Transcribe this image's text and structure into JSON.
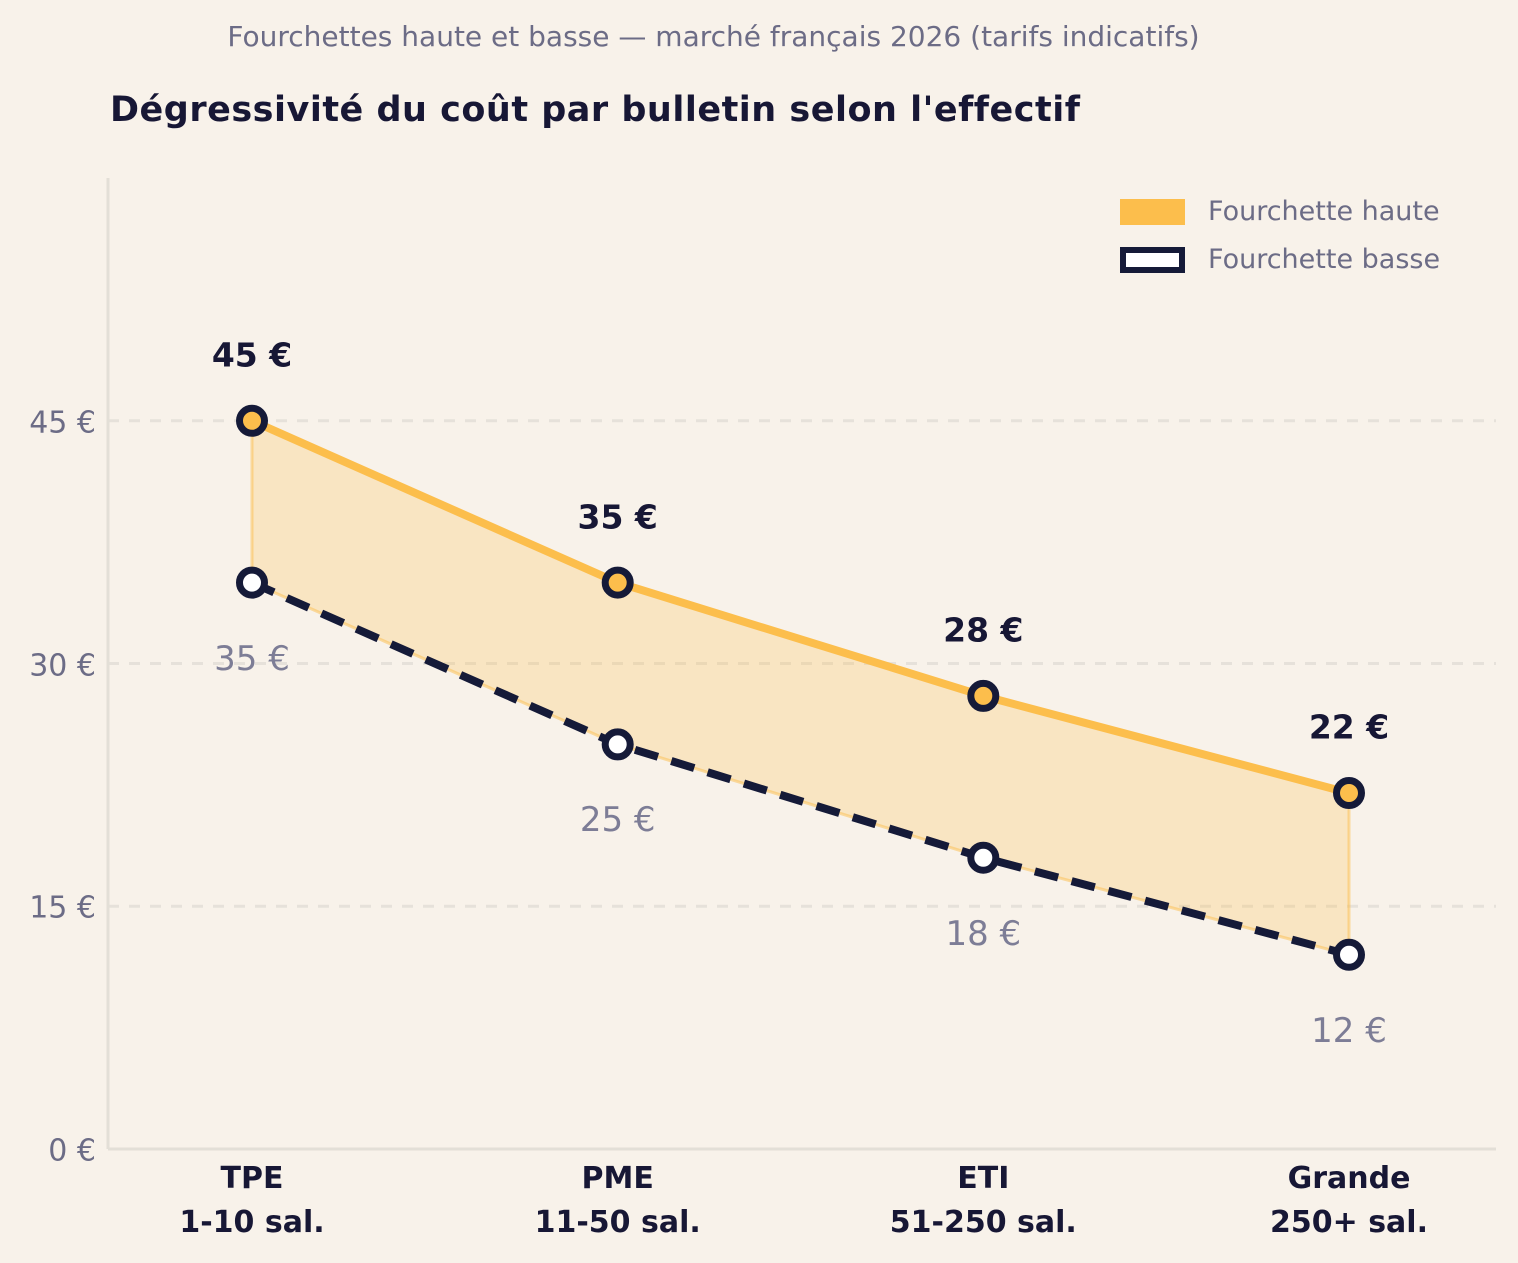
{
  "header": {
    "subtitle": "Fourchettes haute et basse — marché français 2026 (tarifs indicatifs)",
    "title": "Dégressivité du coût par bulletin selon l'effectif"
  },
  "legend": {
    "position": "top-right",
    "items": [
      {
        "label": "Fourchette haute",
        "swatch": "orange-filled-rect"
      },
      {
        "label": "Fourchette basse",
        "swatch": "white-rect-navy-border"
      }
    ]
  },
  "colors": {
    "background": "#F8F2EA",
    "accent_orange": "#FCBE4C",
    "navy": "#151A38",
    "title_navy": "#171735",
    "muted_text": "#6C6C86",
    "low_label_gray": "#7D7D96",
    "band_fill": "rgba(251,190,76,0.25)",
    "band_edge": "rgba(251,190,76,0.5)",
    "gridline": "#E6E1DA",
    "spine": "#E3DFD7",
    "marker_low_fill": "#FFFFFF"
  },
  "chart_data": {
    "type": "line",
    "title": "Dégressivité du coût par bulletin selon l'effectif",
    "subtitle": "Fourchettes haute et basse — marché français 2026 (tarifs indicatifs)",
    "unit": "€",
    "categories": [
      {
        "name": "TPE",
        "sub": "1-10 sal."
      },
      {
        "name": "PME",
        "sub": "11-50 sal."
      },
      {
        "name": "ETI",
        "sub": "51-250 sal."
      },
      {
        "name": "Grande",
        "sub": "250+ sal."
      }
    ],
    "series": [
      {
        "name": "Fourchette haute",
        "values": [
          45,
          35,
          28,
          22
        ],
        "point_labels": [
          "45 €",
          "35 €",
          "28 €",
          "22 €"
        ],
        "line_style": "solid",
        "color": "#FCBE4C",
        "marker": "circle-navy-ring-orange-fill"
      },
      {
        "name": "Fourchette basse",
        "values": [
          35,
          25,
          18,
          12
        ],
        "point_labels": [
          "35 €",
          "25 €",
          "18 €",
          "12 €"
        ],
        "line_style": "dashed",
        "color": "#151A38",
        "marker": "circle-navy-ring-white-fill"
      }
    ],
    "band_fill_between_series": true,
    "yticks": [
      {
        "value": 0,
        "label": "0 €"
      },
      {
        "value": 15,
        "label": "15 €"
      },
      {
        "value": 30,
        "label": "30 €"
      },
      {
        "value": 45,
        "label": "45 €"
      }
    ],
    "ylim": [
      0,
      60
    ],
    "xlabel": "",
    "ylabel": "",
    "grid": "horizontal-dashed"
  }
}
